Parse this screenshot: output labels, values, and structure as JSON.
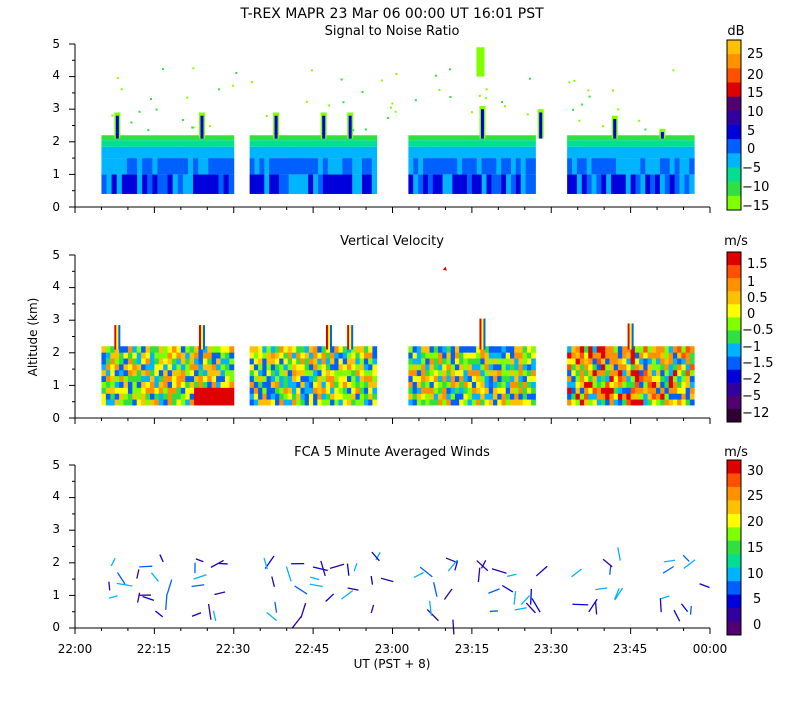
{
  "header": {
    "line1": "T-REX   MAPR 23 Mar 06   00:00 UT   16:01   PST"
  },
  "x_axis": {
    "label": "UT  (PST + 8)",
    "ticks": [
      "22:00",
      "22:15",
      "22:30",
      "22:45",
      "23:00",
      "23:15",
      "23:30",
      "23:45",
      "00:00"
    ]
  },
  "y_axis_label": "Altitude (km)",
  "colors": {
    "snr": [
      "#80ff00",
      "#30e040",
      "#00e090",
      "#00b4ff",
      "#0060ff",
      "#0000dd",
      "#3000a0",
      "#500070",
      "#e00000",
      "#ff5000",
      "#ff9000",
      "#ffc000"
    ],
    "vv": [
      "#300030",
      "#500070",
      "#3000a0",
      "#0000dd",
      "#0060ff",
      "#00b4ff",
      "#30e040",
      "#80ff00",
      "#ffff00",
      "#ffc000",
      "#ff9000",
      "#ff5000",
      "#e00000"
    ],
    "wind": [
      "#500070",
      "#3000a0",
      "#0000dd",
      "#0060ff",
      "#00b4ff",
      "#00e090",
      "#30e040",
      "#80ff00",
      "#ffff00",
      "#ffc000",
      "#ff9000",
      "#ff5000",
      "#e00000"
    ]
  },
  "chart_data": [
    {
      "type": "heatmap",
      "id": "snr",
      "title": "Signal to Noise Ratio",
      "xlabel": "UT  (PST + 8)",
      "ylabel": "",
      "xlim": [
        "22:00",
        "00:00"
      ],
      "ylim": [
        0,
        5
      ],
      "y_ticks": [
        0,
        1,
        2,
        3,
        4,
        5
      ],
      "colorbar": {
        "unit": "dB",
        "labels": [
          "25",
          "20",
          "15",
          "10",
          "5",
          "0",
          "−5",
          "−10",
          "−15"
        ]
      },
      "segments": [
        {
          "start": "22:05",
          "end": "22:30"
        },
        {
          "start": "22:33",
          "end": "22:57"
        },
        {
          "start": "23:03",
          "end": "23:27"
        },
        {
          "start": "23:33",
          "end": "23:57"
        }
      ],
      "notes": "Returns mostly between 0.4 km and 2.2 km; plumes to 3 km near 22:08, 22:24, 22:38, 22:48, 23:16, 23:40"
    },
    {
      "type": "heatmap",
      "id": "vv",
      "title": "Vertical Velocity",
      "xlabel": "UT  (PST + 8)",
      "ylabel": "Altitude (km)",
      "xlim": [
        "22:00",
        "00:00"
      ],
      "ylim": [
        0,
        5
      ],
      "y_ticks": [
        0,
        1,
        2,
        3,
        4,
        5
      ],
      "colorbar": {
        "unit": "m/s",
        "labels": [
          "1.5",
          "1",
          "0.5",
          "0",
          "−0.5",
          "−1",
          "−1.5",
          "−2",
          "−5",
          "−12"
        ]
      },
      "segments": [
        {
          "start": "22:05",
          "end": "22:30"
        },
        {
          "start": "22:33",
          "end": "22:57"
        },
        {
          "start": "23:03",
          "end": "23:27"
        },
        {
          "start": "23:33",
          "end": "23:57"
        }
      ]
    },
    {
      "type": "scatter",
      "id": "winds",
      "title": "FCA 5 Minute Averaged Winds",
      "xlabel": "UT  (PST + 8)",
      "ylabel": "",
      "xlim": [
        "22:00",
        "00:00"
      ],
      "ylim": [
        0,
        5
      ],
      "y_ticks": [
        0,
        1,
        2,
        3,
        4,
        5
      ],
      "colorbar": {
        "unit": "m/s",
        "labels": [
          "30",
          "25",
          "20",
          "15",
          "10",
          "5",
          "0"
        ]
      },
      "barb_times_min": [
        7,
        12,
        17,
        22,
        27,
        37,
        42,
        47,
        52,
        57,
        67,
        72,
        77,
        82,
        87,
        97,
        102,
        112,
        117
      ]
    }
  ]
}
